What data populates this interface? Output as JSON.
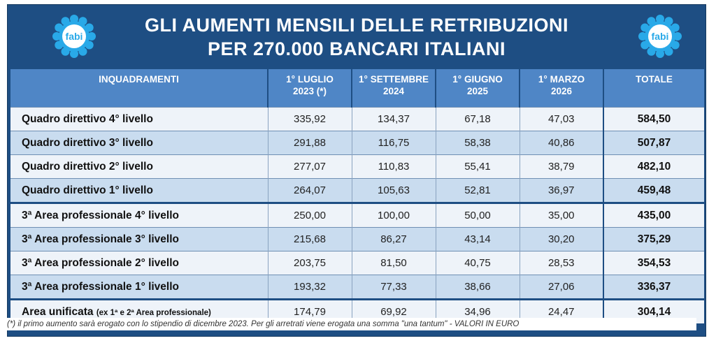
{
  "title_line1": "GLI AUMENTI MENSILI DELLE RETRIBUZIONI",
  "title_line2": "PER 270.000 BANCARI ITALIANI",
  "logo_text": "fabi",
  "colors": {
    "frame": "#1e4e83",
    "header_cells": "#4f86c6",
    "row_light": "#eef3f9",
    "row_dark": "#c9dcef",
    "logo": "#29a9e8"
  },
  "columns": [
    {
      "l1": "INQUADRAMENTI",
      "l2": ""
    },
    {
      "l1": "1° LUGLIO",
      "l2": "2023 (*)"
    },
    {
      "l1": "1° SETTEMBRE",
      "l2": "2024"
    },
    {
      "l1": "1° GIUGNO",
      "l2": "2025"
    },
    {
      "l1": "1° MARZO",
      "l2": "2026"
    },
    {
      "l1": "TOTALE",
      "l2": ""
    }
  ],
  "rows": [
    {
      "label": "Quadro direttivo 4° livello",
      "v1": "335,92",
      "v2": "134,37",
      "v3": "67,18",
      "v4": "47,03",
      "total": "584,50"
    },
    {
      "label": "Quadro direttivo 3° livello",
      "v1": "291,88",
      "v2": "116,75",
      "v3": "58,38",
      "v4": "40,86",
      "total": "507,87"
    },
    {
      "label": "Quadro direttivo 2° livello",
      "v1": "277,07",
      "v2": "110,83",
      "v3": "55,41",
      "v4": "38,79",
      "total": "482,10"
    },
    {
      "label": "Quadro direttivo 1° livello",
      "v1": "264,07",
      "v2": "105,63",
      "v3": "52,81",
      "v4": "36,97",
      "total": "459,48"
    },
    {
      "label": "3ª Area professionale 4° livello",
      "v1": "250,00",
      "v2": "100,00",
      "v3": "50,00",
      "v4": "35,00",
      "total": "435,00"
    },
    {
      "label": "3ª Area professionale 3° livello",
      "v1": "215,68",
      "v2": "86,27",
      "v3": "43,14",
      "v4": "30,20",
      "total": "375,29"
    },
    {
      "label": "3ª Area professionale 2° livello",
      "v1": "203,75",
      "v2": "81,50",
      "v3": "40,75",
      "v4": "28,53",
      "total": "354,53"
    },
    {
      "label": "3ª Area professionale 1° livello",
      "v1": "193,32",
      "v2": "77,33",
      "v3": "38,66",
      "v4": "27,06",
      "total": "336,37"
    }
  ],
  "last_row": {
    "label": "Area unificata",
    "label_small": "(ex 1ª e 2ª Area professionale)",
    "v1": "174,79",
    "v2": "69,92",
    "v3": "34,96",
    "v4": "24,47",
    "total": "304,14"
  },
  "footnote": "(*) il primo aumento sarà erogato con lo stipendio di dicembre 2023. Per gli arretrati viene erogata una somma \"una tantum\" - VALORI IN EURO"
}
